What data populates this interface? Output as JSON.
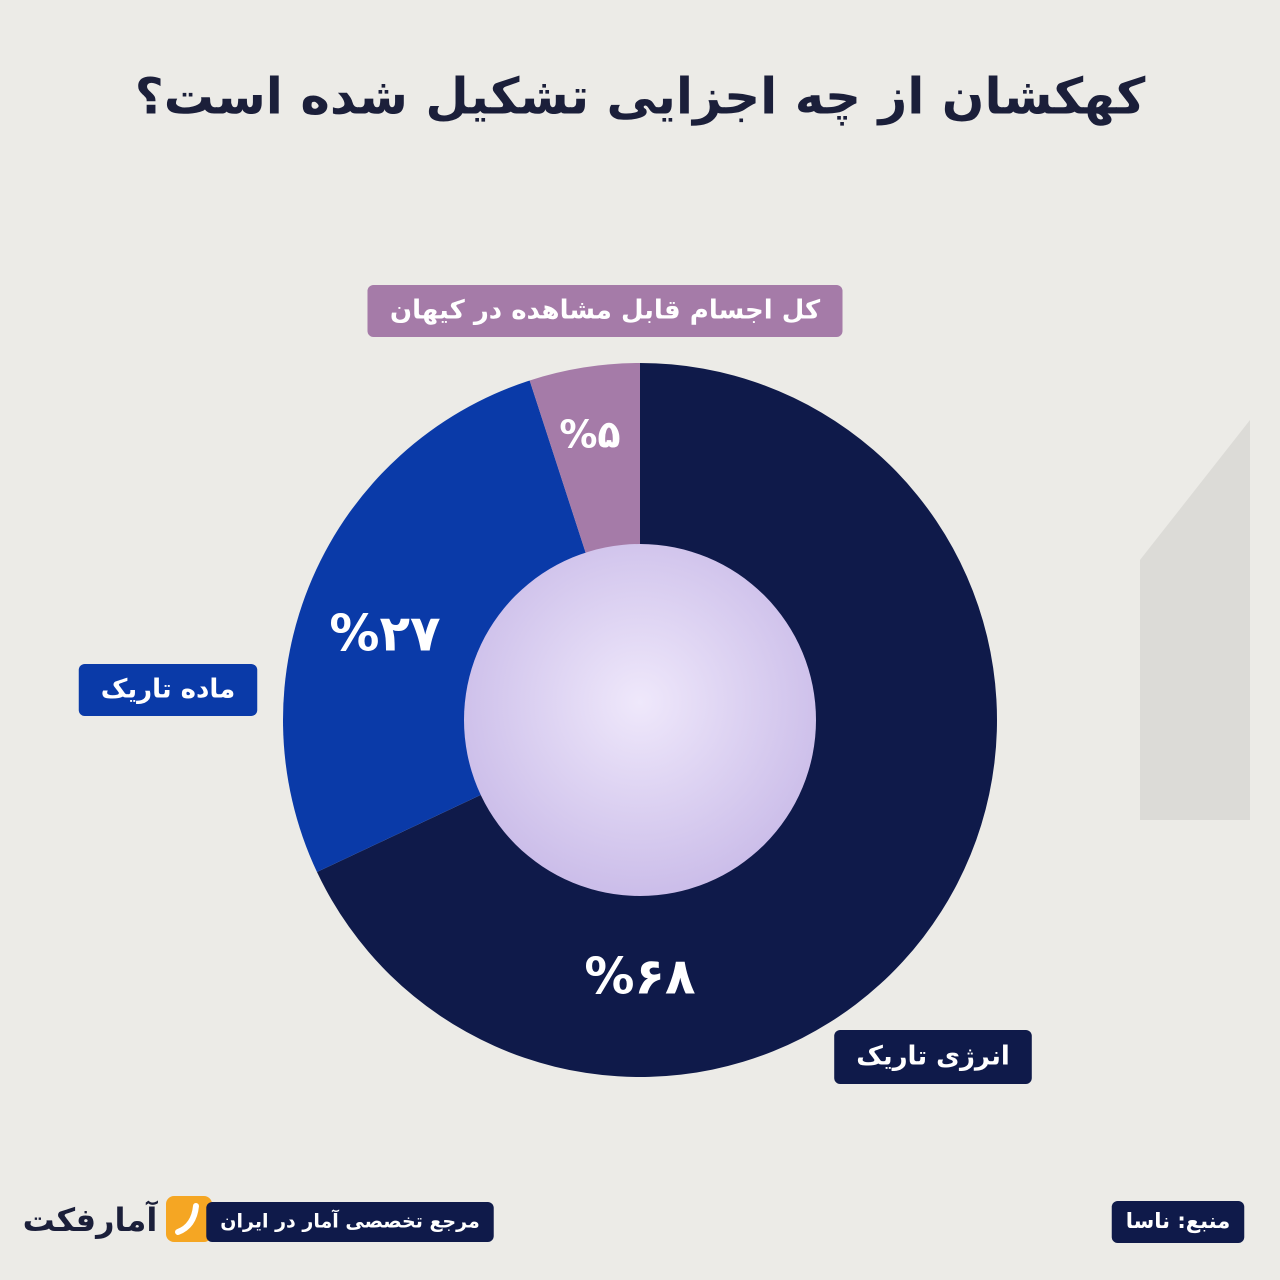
{
  "chart_data": {
    "type": "pie",
    "donut": true,
    "title": "کهکشان از چه اجزایی تشکیل شده است؟",
    "categories": [
      "انرژی تاریک",
      "ماده تاریک",
      "کل اجسام قابل مشاهده در کیهان"
    ],
    "values": [
      68,
      27,
      5
    ],
    "value_labels": [
      "%۶۸",
      "%۲۷",
      "%۵"
    ],
    "colors": [
      "#0f1a4a",
      "#0a3aa8",
      "#a57ba8"
    ]
  },
  "footer": {
    "brand": "آمارفکت",
    "tagline": "مرجع تخصصی آمار در ایران",
    "source": "منبع: ناسا"
  }
}
